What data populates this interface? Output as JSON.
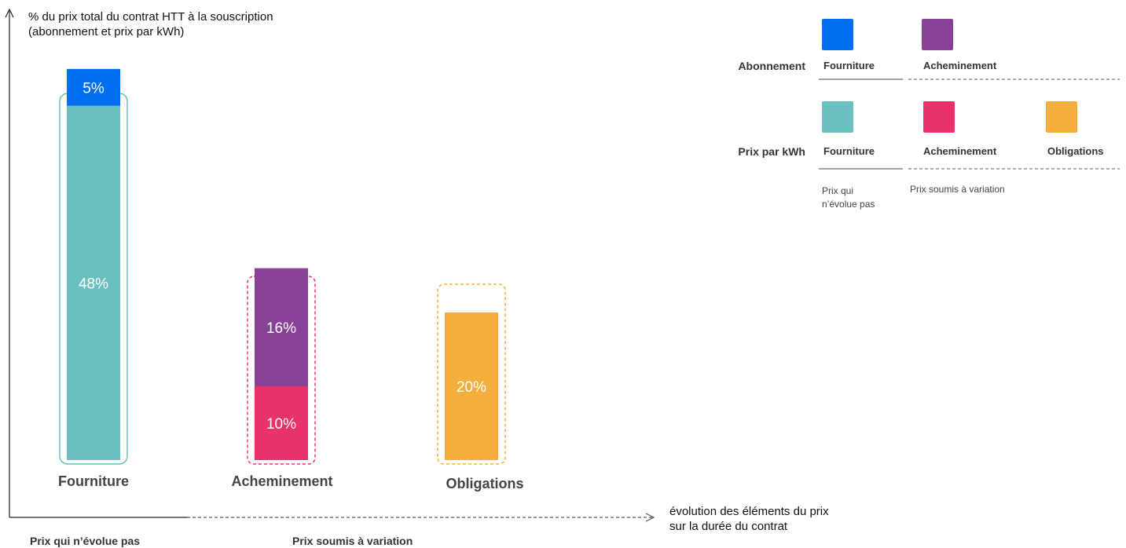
{
  "chart_data": {
    "type": "bar",
    "stacked": true,
    "ylabel": "% du prix total du contrat HTT à la souscription\n(abonnement et prix par kWh)",
    "xlabel": "évolution des éléments du prix\nsur la durée du contrat",
    "categories": [
      "Fourniture",
      "Acheminement",
      "Obligations"
    ],
    "series": [
      {
        "name": "Prix par kWh — Fourniture",
        "category": "Fourniture",
        "value": 48,
        "label": "48%",
        "color": "#6bbfc1"
      },
      {
        "name": "Abonnement — Fourniture",
        "category": "Fourniture",
        "value": 5,
        "label": "5%",
        "color": "#0070f2"
      },
      {
        "name": "Prix par kWh — Acheminement",
        "category": "Acheminement",
        "value": 10,
        "label": "10%",
        "color": "#e8326a"
      },
      {
        "name": "Abonnement — Acheminement",
        "category": "Acheminement",
        "value": 16,
        "label": "16%",
        "color": "#874295"
      },
      {
        "name": "Prix par kWh — Obligations",
        "category": "Obligations",
        "value": 20,
        "label": "20%",
        "color": "#f3ae3d"
      }
    ],
    "groups": [
      {
        "label": "Prix qui n’évolue pas",
        "categories": [
          "Fourniture"
        ]
      },
      {
        "label": "Prix soumis à variation",
        "categories": [
          "Acheminement",
          "Obligations"
        ]
      }
    ]
  },
  "legend": {
    "rows": [
      {
        "title": "Abonnement",
        "items": [
          {
            "label": "Fourniture",
            "color": "#0070f2"
          },
          {
            "label": "Acheminement",
            "color": "#874295"
          }
        ]
      },
      {
        "title": "Prix par kWh",
        "items": [
          {
            "label": "Fourniture",
            "color": "#6bbfc1"
          },
          {
            "label": "Acheminement",
            "color": "#e8326a"
          },
          {
            "label": "Obligations",
            "color": "#f3ae3d"
          }
        ]
      }
    ],
    "notes": {
      "fixed": "Prix qui\nn’évolue pas",
      "variable": "Prix soumis à variation"
    }
  },
  "bottom": {
    "fixed": "Prix qui n’évolue pas",
    "variable": "Prix soumis à variation"
  },
  "colors": {
    "frame_fixed": "#6bbfc1",
    "frame_acheminement": "#e8326a",
    "frame_obligations": "#f3ae3d",
    "axis": "#222222",
    "dashed": "#555555"
  }
}
